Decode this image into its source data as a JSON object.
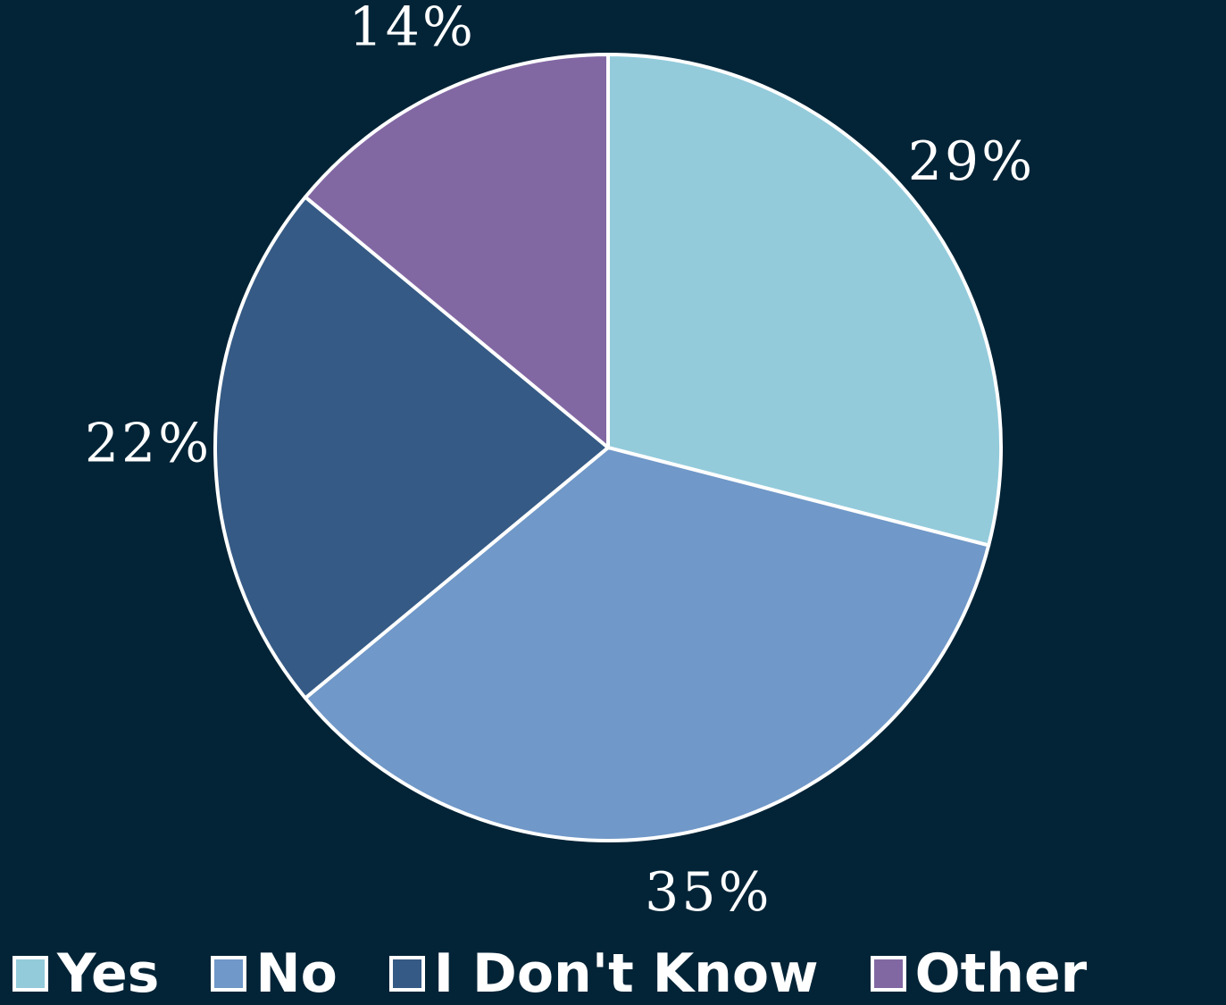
{
  "chart_data": {
    "type": "pie",
    "categories": [
      "Yes",
      "No",
      "I Don't Know",
      "Other"
    ],
    "values": [
      29,
      35,
      22,
      14
    ],
    "labels": [
      "29%",
      "35%",
      "22%",
      "14%"
    ],
    "colors": [
      "#93cbdb",
      "#7098c8",
      "#355a85",
      "#8268a3"
    ],
    "background": "#032437",
    "slice_border": "#ffffff",
    "start_angle": "12 o'clock",
    "direction": "clockwise",
    "legend_position": "bottom"
  }
}
